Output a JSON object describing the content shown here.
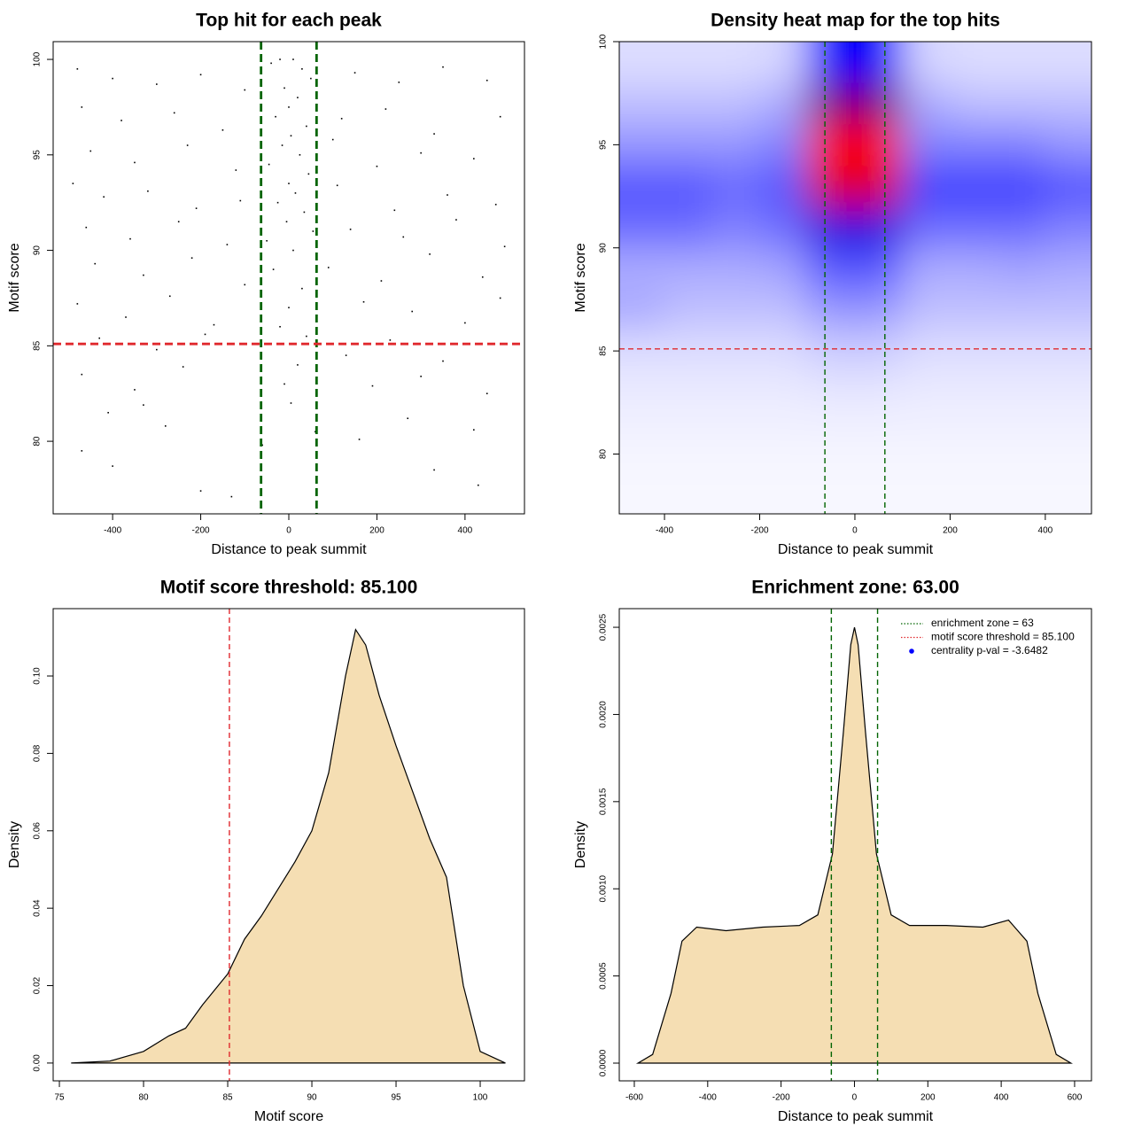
{
  "chart_data": [
    {
      "type": "scatter",
      "title": "Top hit for each peak",
      "x_label": "Distance to peak summit",
      "y_label": "Motif score",
      "xlim": [
        -535,
        535
      ],
      "ylim": [
        76.2,
        100.93
      ],
      "xticks": [
        -400,
        -200,
        0,
        200,
        400
      ],
      "yticks": [
        80,
        85,
        90,
        95,
        100
      ],
      "color": "#000000",
      "reference_lines": [
        {
          "axis": "x",
          "value": -63,
          "color": "#006400"
        },
        {
          "axis": "x",
          "value": 63,
          "color": "#006400"
        },
        {
          "axis": "y",
          "value": 85.1,
          "color": "#e0292e"
        }
      ],
      "x": [
        -40,
        -20,
        10,
        30,
        50,
        -10,
        20,
        0,
        -30,
        40,
        5,
        -15,
        25,
        -45,
        45,
        0,
        15,
        -25,
        35,
        -5,
        55,
        -50,
        10,
        -35,
        30,
        0,
        -20,
        40,
        20,
        -10,
        5,
        60,
        -60,
        -480,
        -400,
        -300,
        -200,
        -100,
        150,
        250,
        350,
        450,
        -470,
        -380,
        -260,
        -150,
        120,
        220,
        330,
        480,
        -450,
        -350,
        -230,
        -120,
        100,
        200,
        300,
        420,
        -490,
        -420,
        -320,
        -210,
        -110,
        110,
        240,
        360,
        470,
        -460,
        -360,
        -250,
        -140,
        140,
        260,
        380,
        490,
        -440,
        -330,
        -220,
        -100,
        90,
        210,
        320,
        440,
        -480,
        -370,
        -270,
        -170,
        170,
        280,
        400,
        480,
        -430,
        -300,
        -190,
        130,
        230,
        350,
        -470,
        -350,
        -240,
        190,
        300,
        450,
        -410,
        -280,
        270,
        420,
        -470,
        -400,
        330,
        -130,
        -200,
        430,
        -330,
        160
      ],
      "y": [
        99.8,
        100,
        100,
        99.5,
        99,
        98.5,
        98,
        97.5,
        97,
        96.5,
        96,
        95.5,
        95,
        94.5,
        94,
        93.5,
        93,
        92.5,
        92,
        91.5,
        91,
        90.5,
        90,
        89,
        88,
        87,
        86,
        85.5,
        84,
        83,
        82,
        80.5,
        79.8,
        99.5,
        99,
        98.7,
        99.2,
        98.4,
        99.3,
        98.8,
        99.6,
        98.9,
        97.5,
        96.8,
        97.2,
        96.3,
        96.9,
        97.4,
        96.1,
        97,
        95.2,
        94.6,
        95.5,
        94.2,
        95.8,
        94.4,
        95.1,
        94.8,
        93.5,
        92.8,
        93.1,
        92.2,
        92.6,
        93.4,
        92.1,
        92.9,
        92.4,
        91.2,
        90.6,
        91.5,
        90.3,
        91.1,
        90.7,
        91.6,
        90.2,
        89.3,
        88.7,
        89.6,
        88.2,
        89.1,
        88.4,
        89.8,
        88.6,
        87.2,
        86.5,
        87.6,
        86.1,
        87.3,
        86.8,
        86.2,
        87.5,
        85.4,
        84.8,
        85.6,
        84.5,
        85.3,
        84.2,
        83.5,
        82.7,
        83.9,
        82.9,
        83.4,
        82.5,
        81.5,
        80.8,
        81.2,
        80.6,
        79.5,
        78.7,
        78.5,
        77.1,
        77.4,
        77.7,
        81.9,
        80.1
      ]
    },
    {
      "type": "heatmap",
      "title": "Density heat map for the top hits",
      "x_label": "Distance to peak summit",
      "y_label": "Motif score",
      "xlim": [
        -495,
        497
      ],
      "ylim": [
        77.1,
        100
      ],
      "xticks": [
        -400,
        -200,
        0,
        200,
        400
      ],
      "yticks": [
        80,
        85,
        90,
        95,
        100
      ],
      "colors": [
        "#ffffff",
        "#0000ff",
        "#ff0000"
      ],
      "reference_lines": [
        {
          "axis": "x",
          "value": -63,
          "color": "#006400"
        },
        {
          "axis": "x",
          "value": 63,
          "color": "#006400"
        },
        {
          "axis": "y",
          "value": 85.1,
          "color": "#e0292e"
        }
      ],
      "x": [
        -450,
        -350,
        -250,
        -150,
        -50,
        50,
        150,
        250,
        350,
        450
      ],
      "y": [
        99,
        97,
        95,
        93,
        91,
        89,
        87,
        85,
        83,
        81,
        79
      ],
      "z": [
        [
          0.08,
          0.08,
          0.08,
          0.1,
          0.6,
          0.6,
          0.1,
          0.08,
          0.08,
          0.08
        ],
        [
          0.15,
          0.15,
          0.15,
          0.2,
          0.8,
          0.8,
          0.2,
          0.15,
          0.15,
          0.15
        ],
        [
          0.25,
          0.25,
          0.25,
          0.3,
          1.0,
          1.0,
          0.3,
          0.3,
          0.3,
          0.25
        ],
        [
          0.4,
          0.4,
          0.35,
          0.4,
          0.95,
          0.95,
          0.45,
          0.45,
          0.45,
          0.4
        ],
        [
          0.35,
          0.35,
          0.3,
          0.35,
          0.65,
          0.65,
          0.35,
          0.35,
          0.35,
          0.3
        ],
        [
          0.2,
          0.2,
          0.2,
          0.22,
          0.4,
          0.4,
          0.2,
          0.2,
          0.22,
          0.2
        ],
        [
          0.2,
          0.15,
          0.15,
          0.15,
          0.25,
          0.25,
          0.15,
          0.15,
          0.15,
          0.15
        ],
        [
          0.08,
          0.08,
          0.08,
          0.08,
          0.12,
          0.12,
          0.08,
          0.08,
          0.08,
          0.08
        ],
        [
          0.05,
          0.05,
          0.05,
          0.05,
          0.06,
          0.06,
          0.05,
          0.05,
          0.05,
          0.05
        ],
        [
          0.03,
          0.03,
          0.03,
          0.03,
          0.03,
          0.03,
          0.03,
          0.03,
          0.03,
          0.03
        ],
        [
          0.02,
          0.02,
          0.02,
          0.02,
          0.02,
          0.02,
          0.02,
          0.02,
          0.02,
          0.02
        ]
      ]
    },
    {
      "type": "density",
      "title": "Motif score threshold: 85.100",
      "x_label": "Motif score",
      "y_label": "Density",
      "xlim": [
        74.63,
        102.63
      ],
      "ylim": [
        -0.0046,
        0.1174
      ],
      "xticks": [
        75,
        80,
        85,
        90,
        95,
        100
      ],
      "yticks": [
        {
          "value": 0,
          "label": "0.00"
        },
        0.02,
        0.04,
        0.06,
        0.08,
        {
          "value": 0.1,
          "label": "0.10"
        }
      ],
      "color": "#f5deb3",
      "reference_lines": [
        {
          "axis": "x",
          "value": 85.1,
          "color": "#e0292e"
        }
      ],
      "x": [
        75.7,
        78,
        80,
        81.5,
        82.5,
        83.5,
        85,
        86,
        87,
        88,
        89,
        90,
        91,
        92,
        92.6,
        93.2,
        94,
        95,
        96,
        97,
        98,
        99,
        100,
        101.5
      ],
      "y": [
        0,
        0.0005,
        0.003,
        0.007,
        0.009,
        0.015,
        0.023,
        0.032,
        0.038,
        0.045,
        0.052,
        0.06,
        0.075,
        0.1,
        0.112,
        0.108,
        0.095,
        0.082,
        0.07,
        0.058,
        0.048,
        0.02,
        0.003,
        0
      ]
    },
    {
      "type": "density",
      "title": "Enrichment zone: 63.00",
      "x_label": "Distance to peak summit",
      "y_label": "Density",
      "xlim": [
        -641,
        646
      ],
      "ylim": [
        -0.0001016,
        0.002607
      ],
      "xticks": [
        -600,
        -400,
        -200,
        0,
        200,
        400,
        600
      ],
      "yticks": [
        {
          "value": 0,
          "label": "0.0000"
        },
        0.0005,
        {
          "value": 0.001,
          "label": "0.0010"
        },
        0.0015,
        {
          "value": 0.002,
          "label": "0.0020"
        },
        0.0025
      ],
      "color": "#f5deb3",
      "reference_lines": [
        {
          "axis": "x",
          "value": -63,
          "color": "#006400"
        },
        {
          "axis": "x",
          "value": 63,
          "color": "#006400"
        }
      ],
      "legend": [
        {
          "name": "enrichment zone = 63",
          "color": "#006400",
          "style": "dotted"
        },
        {
          "name": "motif score threshold = 85.100",
          "color": "#e0292e",
          "style": "dotted"
        },
        {
          "name": "centrality p-val = -3.6482",
          "color": "#0000ff",
          "style": "point"
        }
      ],
      "x": [
        -590,
        -550,
        -500,
        -470,
        -430,
        -350,
        -250,
        -150,
        -100,
        -60,
        -30,
        -10,
        0,
        10,
        30,
        60,
        100,
        150,
        250,
        350,
        420,
        470,
        500,
        550,
        590
      ],
      "y": [
        0,
        5e-05,
        0.0004,
        0.0007,
        0.00078,
        0.00076,
        0.00078,
        0.00079,
        0.00085,
        0.0012,
        0.0019,
        0.0024,
        0.0025,
        0.0024,
        0.0019,
        0.0012,
        0.00085,
        0.00079,
        0.00079,
        0.00078,
        0.00082,
        0.0007,
        0.0004,
        5e-05,
        0
      ]
    }
  ]
}
